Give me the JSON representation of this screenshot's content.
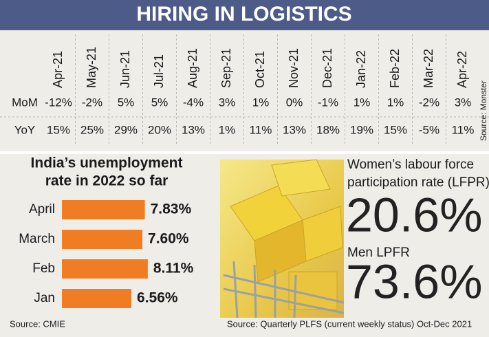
{
  "title": "HIRING IN LOGISTICS",
  "table": {
    "columns": [
      "Apr-21",
      "May-21",
      "Jun-21",
      "Jul-21",
      "Aug-21",
      "Sep-21",
      "Oct-21",
      "Nov-21",
      "Dec-21",
      "Jan-22",
      "Feb-22",
      "Mar-22",
      "Apr-22"
    ],
    "rows": [
      {
        "label": "MoM",
        "values": [
          "-12%",
          "-2%",
          "5%",
          "5%",
          "-4%",
          "3%",
          "1%",
          "0%",
          "-1%",
          "1%",
          "1%",
          "-2%",
          "3%"
        ]
      },
      {
        "label": "YoY",
        "values": [
          "15%",
          "25%",
          "29%",
          "20%",
          "13%",
          "1%",
          "11%",
          "13%",
          "18%",
          "19%",
          "15%",
          "-5%",
          "11%"
        ]
      }
    ],
    "source": "Source: Monster"
  },
  "chart_data": {
    "type": "barh",
    "title": [
      "India’s unemployment",
      "rate in 2022 so far"
    ],
    "categories": [
      "April",
      "March",
      "Feb",
      "Jan"
    ],
    "values": [
      7.83,
      7.6,
      8.11,
      6.56
    ],
    "value_labels": [
      "7.83%",
      "7.60%",
      "8.11%",
      "6.56%"
    ],
    "color": "#f07d24",
    "source": "Source: CMIE"
  },
  "lfpr": {
    "women_label": [
      "Women’s labour force",
      "participation rate (LFPR)"
    ],
    "women_value": "20.6%",
    "men_label": "Men LPFR",
    "men_value": "73.6%",
    "source": "Source: Quarterly PLFS (current weekly status) Oct-Dec 2021"
  }
}
